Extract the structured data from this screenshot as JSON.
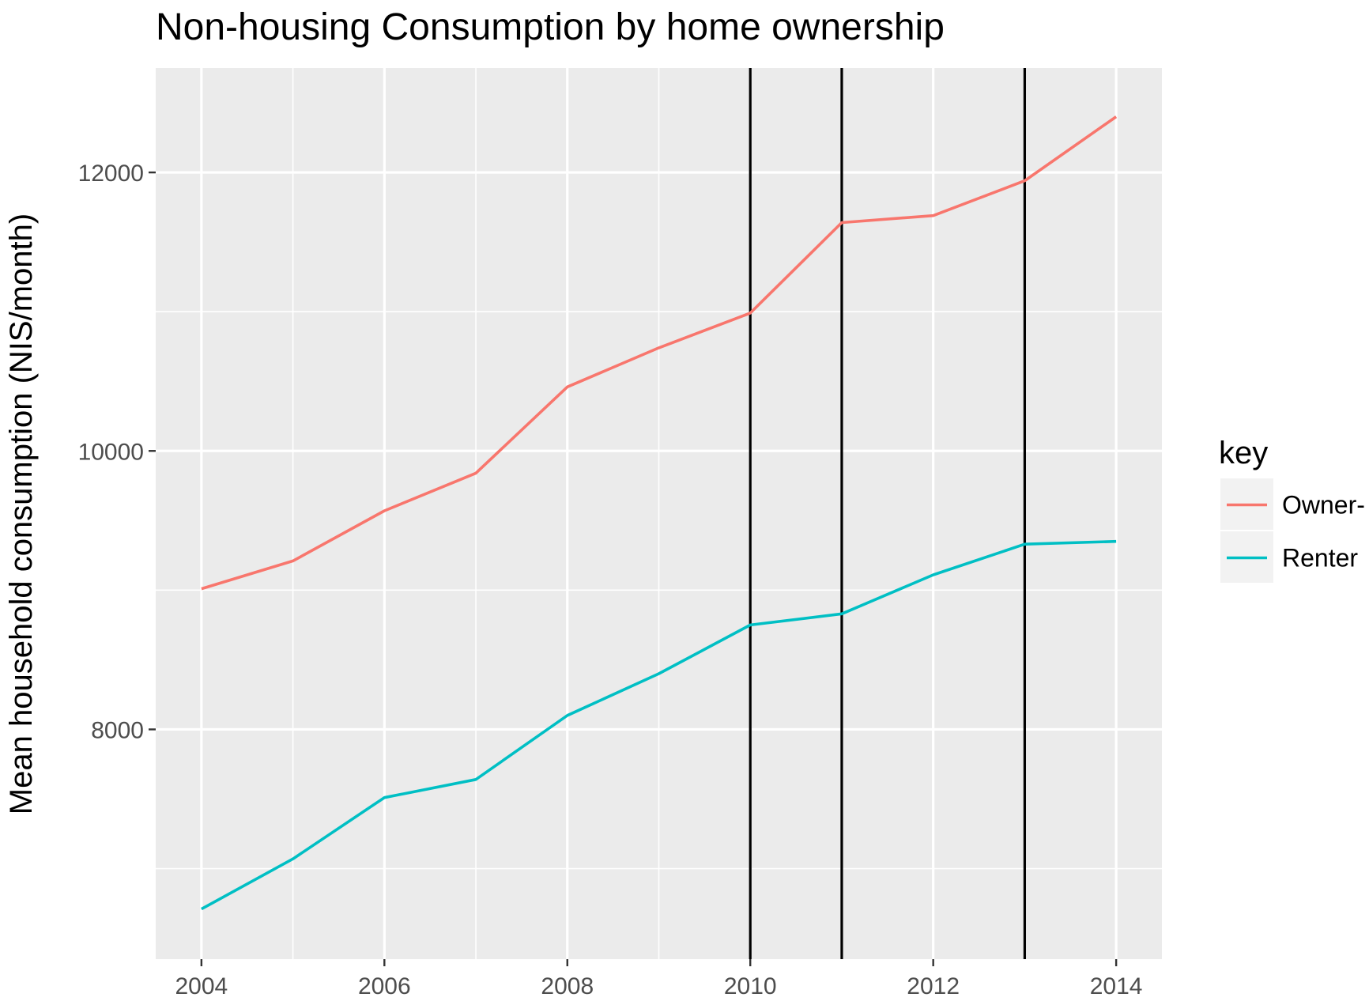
{
  "chart_data": {
    "type": "line",
    "title": "Non-housing Consumption by home ownership",
    "xlabel": "",
    "ylabel": "Mean household consumption (NIS/month)",
    "x": [
      2004,
      2005,
      2006,
      2007,
      2008,
      2009,
      2010,
      2011,
      2012,
      2013,
      2014
    ],
    "xlim": [
      2003.5,
      2014.5
    ],
    "ylim": [
      6350,
      12750
    ],
    "x_ticks": [
      "2004",
      "2006",
      "2008",
      "2010",
      "2012",
      "2014"
    ],
    "y_ticks": [
      "8000",
      "10000",
      "12000"
    ],
    "vertical_lines": [
      2010,
      2011,
      2013
    ],
    "grid": true,
    "legend": {
      "title": "key",
      "placement": "right"
    },
    "series": [
      {
        "name": "Owner-",
        "color": "#F8766D",
        "values": [
          9010,
          9210,
          9570,
          9840,
          10460,
          10740,
          10990,
          11640,
          11690,
          11940,
          12400
        ]
      },
      {
        "name": "Renter",
        "color": "#00BFC4",
        "values": [
          6710,
          7070,
          7510,
          7640,
          8100,
          8400,
          8750,
          8830,
          9110,
          9330,
          9350
        ]
      }
    ]
  }
}
